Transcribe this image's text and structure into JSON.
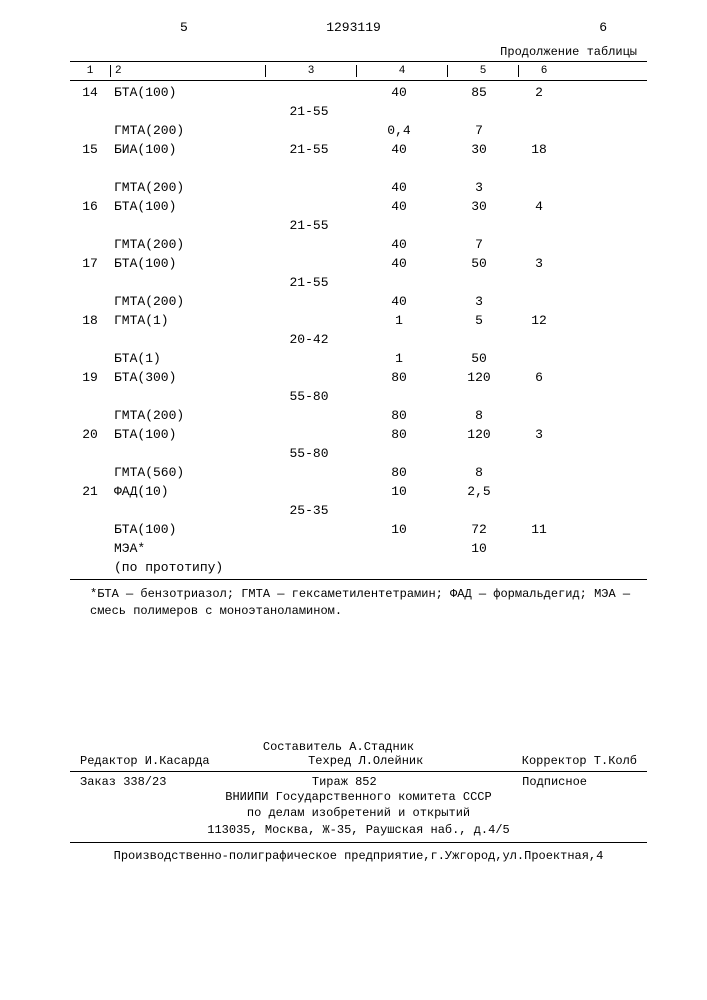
{
  "page_left_num": "5",
  "patent_number": "1293119",
  "page_right_num": "6",
  "continuation": "Продолжение таблицы",
  "col_headers": [
    "1",
    "2",
    "3",
    "4",
    "5",
    "6"
  ],
  "rows": [
    {
      "c1": "14",
      "c2": "БТА(100)",
      "c3": "",
      "c4": "40",
      "c5": "85",
      "c6": "2"
    },
    {
      "c1": "",
      "c2": "",
      "c3": "21-55",
      "c4": "",
      "c5": "",
      "c6": ""
    },
    {
      "c1": "",
      "c2": "ГМТА(200)",
      "c3": "",
      "c4": "0,4",
      "c5": "7",
      "c6": ""
    },
    {
      "c1": "15",
      "c2": "БИА(100)",
      "c3": "21-55",
      "c4": "40",
      "c5": "30",
      "c6": "18"
    },
    {
      "c1": "",
      "c2": "",
      "c3": "",
      "c4": "",
      "c5": "",
      "c6": ""
    },
    {
      "c1": "",
      "c2": "ГМТА(200)",
      "c3": "",
      "c4": "40",
      "c5": "3",
      "c6": ""
    },
    {
      "c1": "16",
      "c2": "БТА(100)",
      "c3": "",
      "c4": "40",
      "c5": "30",
      "c6": "4"
    },
    {
      "c1": "",
      "c2": "",
      "c3": "21-55",
      "c4": "",
      "c5": "",
      "c6": ""
    },
    {
      "c1": "",
      "c2": "ГМТА(200)",
      "c3": "",
      "c4": "40",
      "c5": "7",
      "c6": ""
    },
    {
      "c1": "17",
      "c2": "БТА(100)",
      "c3": "",
      "c4": "40",
      "c5": "50",
      "c6": "3"
    },
    {
      "c1": "",
      "c2": "",
      "c3": "21-55",
      "c4": "",
      "c5": "",
      "c6": ""
    },
    {
      "c1": "",
      "c2": "ГМТА(200)",
      "c3": "",
      "c4": "40",
      "c5": "3",
      "c6": ""
    },
    {
      "c1": "18",
      "c2": "ГМТА(1)",
      "c3": "",
      "c4": "1",
      "c5": "5",
      "c6": "12"
    },
    {
      "c1": "",
      "c2": "",
      "c3": "20-42",
      "c4": "",
      "c5": "",
      "c6": ""
    },
    {
      "c1": "",
      "c2": "БТА(1)",
      "c3": "",
      "c4": "1",
      "c5": "50",
      "c6": ""
    },
    {
      "c1": "19",
      "c2": "БТА(300)",
      "c3": "",
      "c4": "80",
      "c5": "120",
      "c6": "6"
    },
    {
      "c1": "",
      "c2": "",
      "c3": "55-80",
      "c4": "",
      "c5": "",
      "c6": ""
    },
    {
      "c1": "",
      "c2": "ГМТА(200)",
      "c3": "",
      "c4": "80",
      "c5": "8",
      "c6": ""
    },
    {
      "c1": "20",
      "c2": "БТА(100)",
      "c3": "",
      "c4": "80",
      "c5": "120",
      "c6": "3"
    },
    {
      "c1": "",
      "c2": "",
      "c3": "55-80",
      "c4": "",
      "c5": "",
      "c6": ""
    },
    {
      "c1": "",
      "c2": "ГМТА(560)",
      "c3": "",
      "c4": "80",
      "c5": "8",
      "c6": ""
    },
    {
      "c1": "21",
      "c2": "ФАД(10)",
      "c3": "",
      "c4": "10",
      "c5": "2,5",
      "c6": ""
    },
    {
      "c1": "",
      "c2": "",
      "c3": "25-35",
      "c4": "",
      "c5": "",
      "c6": ""
    },
    {
      "c1": "",
      "c2": "БТА(100)",
      "c3": "",
      "c4": "10",
      "c5": "72",
      "c6": "11"
    },
    {
      "c1": "",
      "c2": "МЭА*",
      "c3": "",
      "c4": "",
      "c5": "10",
      "c6": ""
    },
    {
      "c1": "",
      "c2": "(по прототипу)",
      "c3": "",
      "c4": "",
      "c5": "",
      "c6": ""
    }
  ],
  "footnote": "*БТА — бензотриазол; ГМТА — гексаметилентетрамин; ФАД — формальдегид; МЭА — смесь полимеров с моноэтаноламином.",
  "footer": {
    "compiler": "Составитель А.Стадник",
    "editor": "Редактор И.Касарда",
    "techred": "Техред Л.Олейник",
    "corrector": "Корректор Т.Колб",
    "order": "Заказ 338/23",
    "tirazh": "Тираж 852",
    "subscript": "Подписное",
    "org1": "ВНИИПИ Государственного комитета СССР",
    "org2": "по делам изобретений и открытий",
    "org3": "113035, Москва, Ж-35, Раушская наб., д.4/5",
    "production": "Производственно-полиграфическое предприятие,г.Ужгород,ул.Проектная,4"
  }
}
